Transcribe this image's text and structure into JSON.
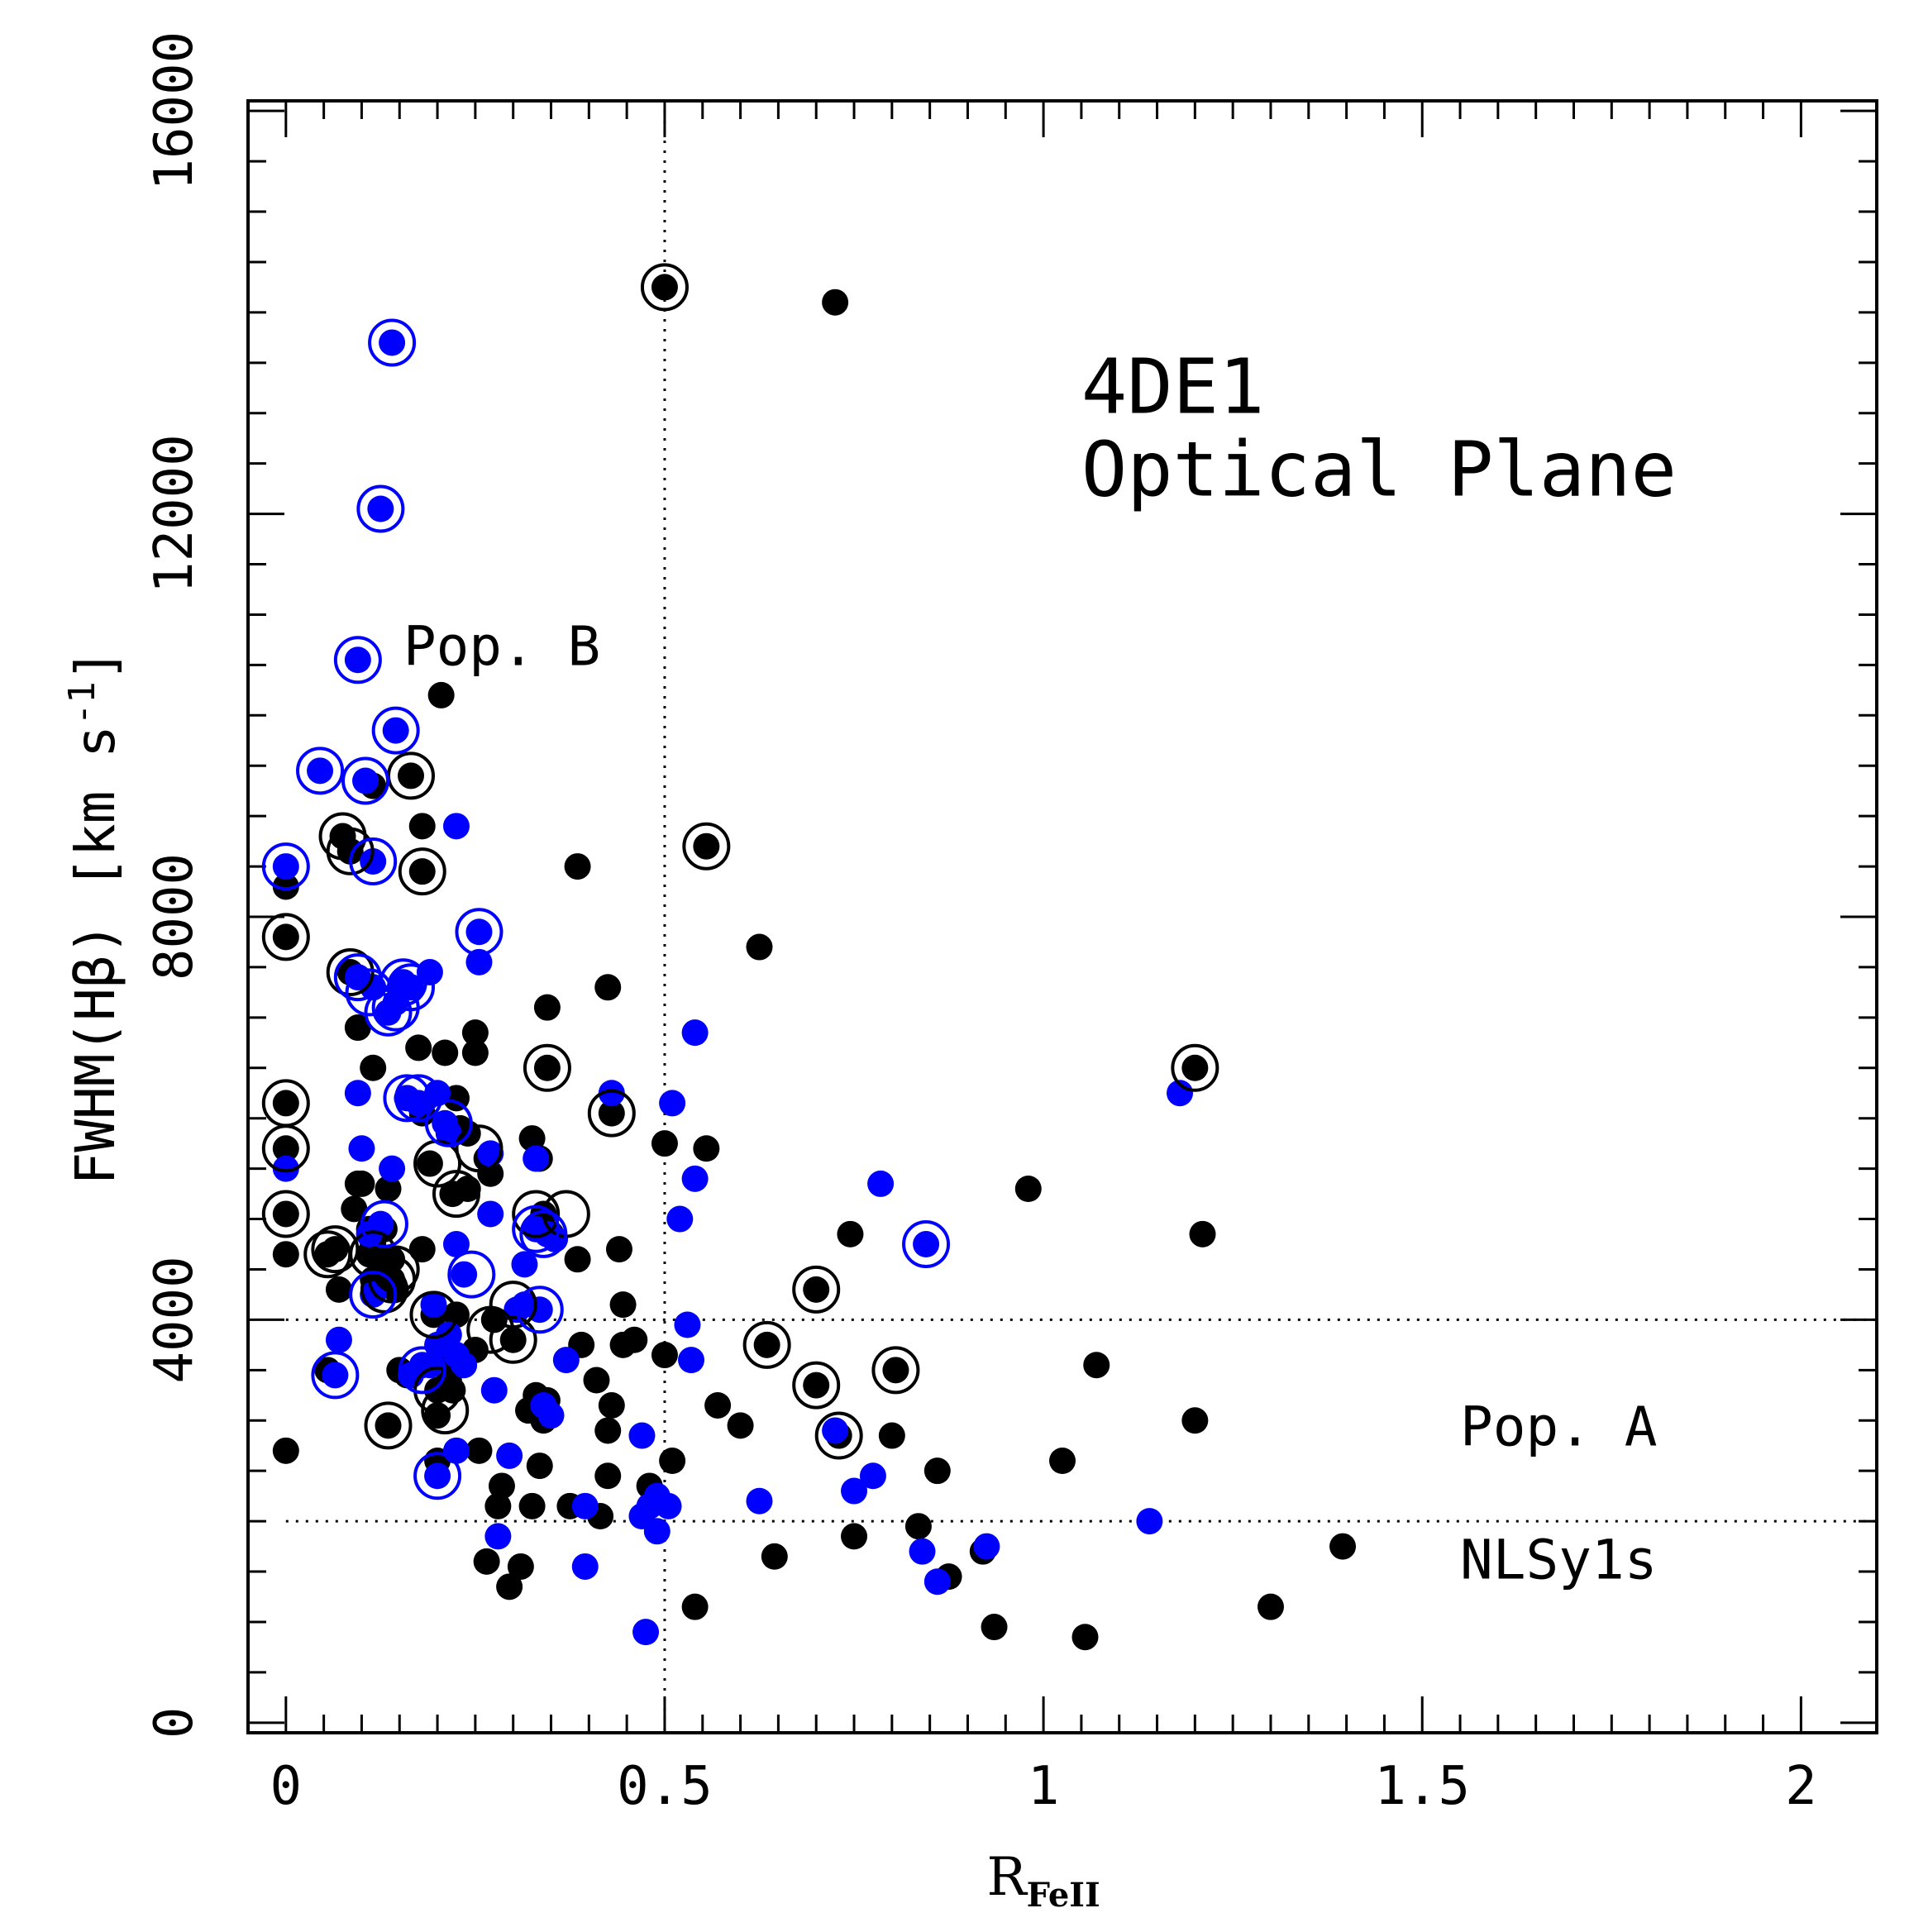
{
  "chart_data": {
    "type": "scatter",
    "title": "",
    "xlabel": "R",
    "xlabel_subscript": "FeII",
    "ylabel": "FWHM(Hβ) [km s",
    "ylabel_sup": "-1",
    "ylabel_end": "]",
    "xlim": [
      -0.05,
      2.1
    ],
    "ylim": [
      -100,
      16100
    ],
    "x_ticks": [
      0,
      0.5,
      1,
      1.5,
      2
    ],
    "x_tick_labels": [
      "0",
      "0.5",
      "1",
      "1.5",
      "2"
    ],
    "y_ticks": [
      0,
      4000,
      8000,
      12000,
      16000
    ],
    "y_tick_labels": [
      "0",
      "4000",
      "8000",
      "12000",
      "16000"
    ],
    "grid": false,
    "reference_lines": [
      {
        "orientation": "vertical",
        "value": 0.5,
        "style": "dotted"
      },
      {
        "orientation": "horizontal",
        "value": 4000,
        "style": "dotted"
      },
      {
        "orientation": "horizontal",
        "value": 2000,
        "style": "dotted"
      }
    ],
    "annotations": [
      {
        "text": "4DE1",
        "x": 1.05,
        "y": 13000
      },
      {
        "text": "Optical Plane",
        "x": 1.05,
        "y": 12180
      },
      {
        "text": "Pop. B",
        "x": 0.155,
        "y": 10500
      },
      {
        "text": "Pop. A",
        "x": 1.55,
        "y": 2750
      },
      {
        "text": "NLSy1s",
        "x": 1.55,
        "y": 1430
      }
    ],
    "colors": {
      "black_series": "#000000",
      "blue_series": "#0000ff"
    },
    "series": [
      {
        "color": "black",
        "marker": "filled-circle",
        "points": [
          [
            0.5,
            14250
          ],
          [
            0.725,
            14100
          ],
          [
            0.205,
            10200
          ],
          [
            0.555,
            8700
          ],
          [
            0.385,
            8500
          ],
          [
            0.165,
            9400
          ],
          [
            0.18,
            8900
          ],
          [
            0.18,
            8450
          ],
          [
            0.0,
            8300
          ],
          [
            0.075,
            8800
          ],
          [
            0.085,
            8650
          ],
          [
            0.115,
            9300
          ],
          [
            0.0,
            7800
          ],
          [
            0.625,
            7700
          ],
          [
            0.085,
            7450
          ],
          [
            0.095,
            6900
          ],
          [
            0.115,
            6500
          ],
          [
            0.175,
            6700
          ],
          [
            0.21,
            6650
          ],
          [
            0.25,
            6850
          ],
          [
            0.25,
            6650
          ],
          [
            0.345,
            7100
          ],
          [
            0.425,
            7300
          ],
          [
            0.345,
            6500
          ],
          [
            0.0,
            6150
          ],
          [
            0.0,
            5700
          ],
          [
            0.0,
            5050
          ],
          [
            0.0,
            4650
          ],
          [
            0.0,
            2700
          ],
          [
            0.055,
            3500
          ],
          [
            0.055,
            4650
          ],
          [
            0.065,
            4700
          ],
          [
            0.07,
            4300
          ],
          [
            0.09,
            5100
          ],
          [
            0.095,
            5350
          ],
          [
            0.1,
            5350
          ],
          [
            0.11,
            4900
          ],
          [
            0.11,
            4650
          ],
          [
            0.115,
            4750
          ],
          [
            0.115,
            4400
          ],
          [
            0.125,
            4350
          ],
          [
            0.125,
            4600
          ],
          [
            0.135,
            5300
          ],
          [
            0.13,
            4900
          ],
          [
            0.135,
            2950
          ],
          [
            0.14,
            4600
          ],
          [
            0.14,
            4400
          ],
          [
            0.145,
            4300
          ],
          [
            0.15,
            3500
          ],
          [
            0.16,
            3450
          ],
          [
            0.18,
            4700
          ],
          [
            0.18,
            6050
          ],
          [
            0.19,
            5550
          ],
          [
            0.195,
            4050
          ],
          [
            0.2,
            3050
          ],
          [
            0.2,
            2600
          ],
          [
            0.2,
            3300
          ],
          [
            0.21,
            3600
          ],
          [
            0.215,
            3400
          ],
          [
            0.22,
            3300
          ],
          [
            0.22,
            5250
          ],
          [
            0.225,
            4050
          ],
          [
            0.23,
            5900
          ],
          [
            0.225,
            6200
          ],
          [
            0.24,
            5850
          ],
          [
            0.24,
            5300
          ],
          [
            0.25,
            3700
          ],
          [
            0.255,
            2700
          ],
          [
            0.265,
            1600
          ],
          [
            0.265,
            5600
          ],
          [
            0.27,
            5450
          ],
          [
            0.275,
            4000
          ],
          [
            0.285,
            2350
          ],
          [
            0.28,
            2150
          ],
          [
            0.295,
            1350
          ],
          [
            0.3,
            3800
          ],
          [
            0.31,
            1550
          ],
          [
            0.32,
            3100
          ],
          [
            0.325,
            5800
          ],
          [
            0.325,
            2150
          ],
          [
            0.33,
            3250
          ],
          [
            0.335,
            2550
          ],
          [
            0.335,
            5600
          ],
          [
            0.34,
            5050
          ],
          [
            0.34,
            3000
          ],
          [
            0.345,
            3200
          ],
          [
            0.35,
            4850
          ],
          [
            0.375,
            2150
          ],
          [
            0.385,
            4600
          ],
          [
            0.39,
            3750
          ],
          [
            0.41,
            3400
          ],
          [
            0.415,
            2050
          ],
          [
            0.425,
            2450
          ],
          [
            0.425,
            2900
          ],
          [
            0.43,
            3150
          ],
          [
            0.43,
            6050
          ],
          [
            0.44,
            4700
          ],
          [
            0.445,
            4150
          ],
          [
            0.445,
            3750
          ],
          [
            0.46,
            3800
          ],
          [
            0.48,
            2350
          ],
          [
            0.5,
            5750
          ],
          [
            0.5,
            3650
          ],
          [
            0.51,
            2600
          ],
          [
            0.54,
            1150
          ],
          [
            0.555,
            5700
          ],
          [
            0.57,
            3150
          ],
          [
            0.6,
            2950
          ],
          [
            0.635,
            3750
          ],
          [
            0.645,
            1650
          ],
          [
            0.7,
            4300
          ],
          [
            0.7,
            3350
          ],
          [
            0.73,
            2850
          ],
          [
            0.745,
            4850
          ],
          [
            0.75,
            1850
          ],
          [
            0.8,
            2850
          ],
          [
            0.805,
            3500
          ],
          [
            0.835,
            1950
          ],
          [
            0.86,
            2500
          ],
          [
            0.875,
            1450
          ],
          [
            0.92,
            1700
          ],
          [
            0.935,
            950
          ],
          [
            0.98,
            5300
          ],
          [
            1.025,
            2600
          ],
          [
            1.055,
            850
          ],
          [
            1.07,
            3550
          ],
          [
            1.2,
            6500
          ],
          [
            1.2,
            3000
          ],
          [
            1.21,
            4850
          ],
          [
            1.3,
            1150
          ],
          [
            1.395,
            1750
          ]
        ]
      },
      {
        "color": "blue",
        "marker": "filled-circle",
        "points": [
          [
            0.14,
            13700
          ],
          [
            0.125,
            12050
          ],
          [
            0.095,
            10550
          ],
          [
            0.145,
            9850
          ],
          [
            0.045,
            9450
          ],
          [
            0.105,
            9350
          ],
          [
            0.225,
            8900
          ],
          [
            0.115,
            8550
          ],
          [
            0.0,
            8500
          ],
          [
            0.255,
            7850
          ],
          [
            0.255,
            7550
          ],
          [
            0.095,
            7400
          ],
          [
            0.115,
            7300
          ],
          [
            0.135,
            7050
          ],
          [
            0.155,
            7350
          ],
          [
            0.165,
            7300
          ],
          [
            0.19,
            7450
          ],
          [
            0.145,
            7150
          ],
          [
            0.54,
            6850
          ],
          [
            0.095,
            6250
          ],
          [
            0.16,
            6200
          ],
          [
            0.175,
            6150
          ],
          [
            0.2,
            6250
          ],
          [
            0.21,
            5950
          ],
          [
            0.43,
            6250
          ],
          [
            0.51,
            6150
          ],
          [
            0.1,
            5700
          ],
          [
            0.14,
            5500
          ],
          [
            0.0,
            5500
          ],
          [
            0.215,
            5850
          ],
          [
            0.27,
            5650
          ],
          [
            0.27,
            5050
          ],
          [
            0.33,
            5600
          ],
          [
            0.54,
            5400
          ],
          [
            0.11,
            4850
          ],
          [
            0.125,
            4950
          ],
          [
            0.225,
            4750
          ],
          [
            0.235,
            4450
          ],
          [
            0.315,
            4550
          ],
          [
            0.33,
            4900
          ],
          [
            0.345,
            4850
          ],
          [
            0.355,
            4800
          ],
          [
            0.52,
            5000
          ],
          [
            0.785,
            5350
          ],
          [
            0.845,
            4750
          ],
          [
            0.07,
            3800
          ],
          [
            0.065,
            3450
          ],
          [
            0.115,
            4250
          ],
          [
            0.195,
            4150
          ],
          [
            0.305,
            4100
          ],
          [
            0.315,
            4150
          ],
          [
            0.335,
            4100
          ],
          [
            0.165,
            3450
          ],
          [
            0.18,
            3550
          ],
          [
            0.19,
            3550
          ],
          [
            0.2,
            3750
          ],
          [
            0.215,
            3850
          ],
          [
            0.225,
            3650
          ],
          [
            0.235,
            3550
          ],
          [
            0.275,
            3300
          ],
          [
            0.34,
            3150
          ],
          [
            0.35,
            3050
          ],
          [
            0.37,
            3600
          ],
          [
            0.53,
            3950
          ],
          [
            0.535,
            3600
          ],
          [
            0.47,
            2850
          ],
          [
            0.225,
            2700
          ],
          [
            0.28,
            1850
          ],
          [
            0.295,
            2650
          ],
          [
            0.2,
            2450
          ],
          [
            0.395,
            2150
          ],
          [
            0.395,
            1550
          ],
          [
            0.47,
            2050
          ],
          [
            0.48,
            2150
          ],
          [
            0.49,
            2250
          ],
          [
            0.49,
            1900
          ],
          [
            0.505,
            2150
          ],
          [
            0.475,
            900
          ],
          [
            0.625,
            2200
          ],
          [
            0.725,
            2900
          ],
          [
            0.75,
            2300
          ],
          [
            0.775,
            2450
          ],
          [
            0.84,
            1700
          ],
          [
            0.86,
            1400
          ],
          [
            0.925,
            1750
          ],
          [
            1.14,
            2000
          ],
          [
            1.18,
            6250
          ]
        ]
      },
      {
        "color": "black",
        "marker": "open-ring",
        "points": [
          [
            0.5,
            14250
          ],
          [
            0.555,
            8700
          ],
          [
            0.18,
            8450
          ],
          [
            0.165,
            9400
          ],
          [
            0.075,
            8800
          ],
          [
            0.085,
            8650
          ],
          [
            0.0,
            7800
          ],
          [
            0.085,
            7450
          ],
          [
            0.345,
            6500
          ],
          [
            0.0,
            6150
          ],
          [
            0.0,
            5700
          ],
          [
            0.0,
            5050
          ],
          [
            0.055,
            4650
          ],
          [
            0.065,
            4700
          ],
          [
            0.115,
            4650
          ],
          [
            0.14,
            4400
          ],
          [
            0.13,
            4300
          ],
          [
            0.145,
            4500
          ],
          [
            0.2,
            5550
          ],
          [
            0.225,
            5250
          ],
          [
            0.255,
            5700
          ],
          [
            0.195,
            4050
          ],
          [
            0.2,
            3300
          ],
          [
            0.21,
            3100
          ],
          [
            0.135,
            2950
          ],
          [
            0.27,
            3900
          ],
          [
            0.3,
            3800
          ],
          [
            0.3,
            4150
          ],
          [
            0.33,
            5050
          ],
          [
            0.37,
            5050
          ],
          [
            0.43,
            6050
          ],
          [
            0.635,
            3750
          ],
          [
            0.7,
            4300
          ],
          [
            0.7,
            3350
          ],
          [
            0.73,
            2850
          ],
          [
            0.805,
            3500
          ],
          [
            1.2,
            6500
          ]
        ]
      },
      {
        "color": "blue",
        "marker": "open-ring",
        "points": [
          [
            0.14,
            13700
          ],
          [
            0.125,
            12050
          ],
          [
            0.095,
            10550
          ],
          [
            0.145,
            9850
          ],
          [
            0.045,
            9450
          ],
          [
            0.105,
            9350
          ],
          [
            0.115,
            8550
          ],
          [
            0.0,
            8500
          ],
          [
            0.255,
            7850
          ],
          [
            0.095,
            7400
          ],
          [
            0.11,
            7250
          ],
          [
            0.135,
            7050
          ],
          [
            0.145,
            7100
          ],
          [
            0.155,
            7350
          ],
          [
            0.165,
            7300
          ],
          [
            0.16,
            6200
          ],
          [
            0.175,
            6200
          ],
          [
            0.215,
            5950
          ],
          [
            0.13,
            4950
          ],
          [
            0.115,
            4250
          ],
          [
            0.245,
            4450
          ],
          [
            0.33,
            4900
          ],
          [
            0.34,
            4850
          ],
          [
            0.335,
            4100
          ],
          [
            0.065,
            3450
          ],
          [
            0.18,
            3500
          ],
          [
            0.2,
            2450
          ],
          [
            0.845,
            4750
          ]
        ]
      }
    ]
  }
}
